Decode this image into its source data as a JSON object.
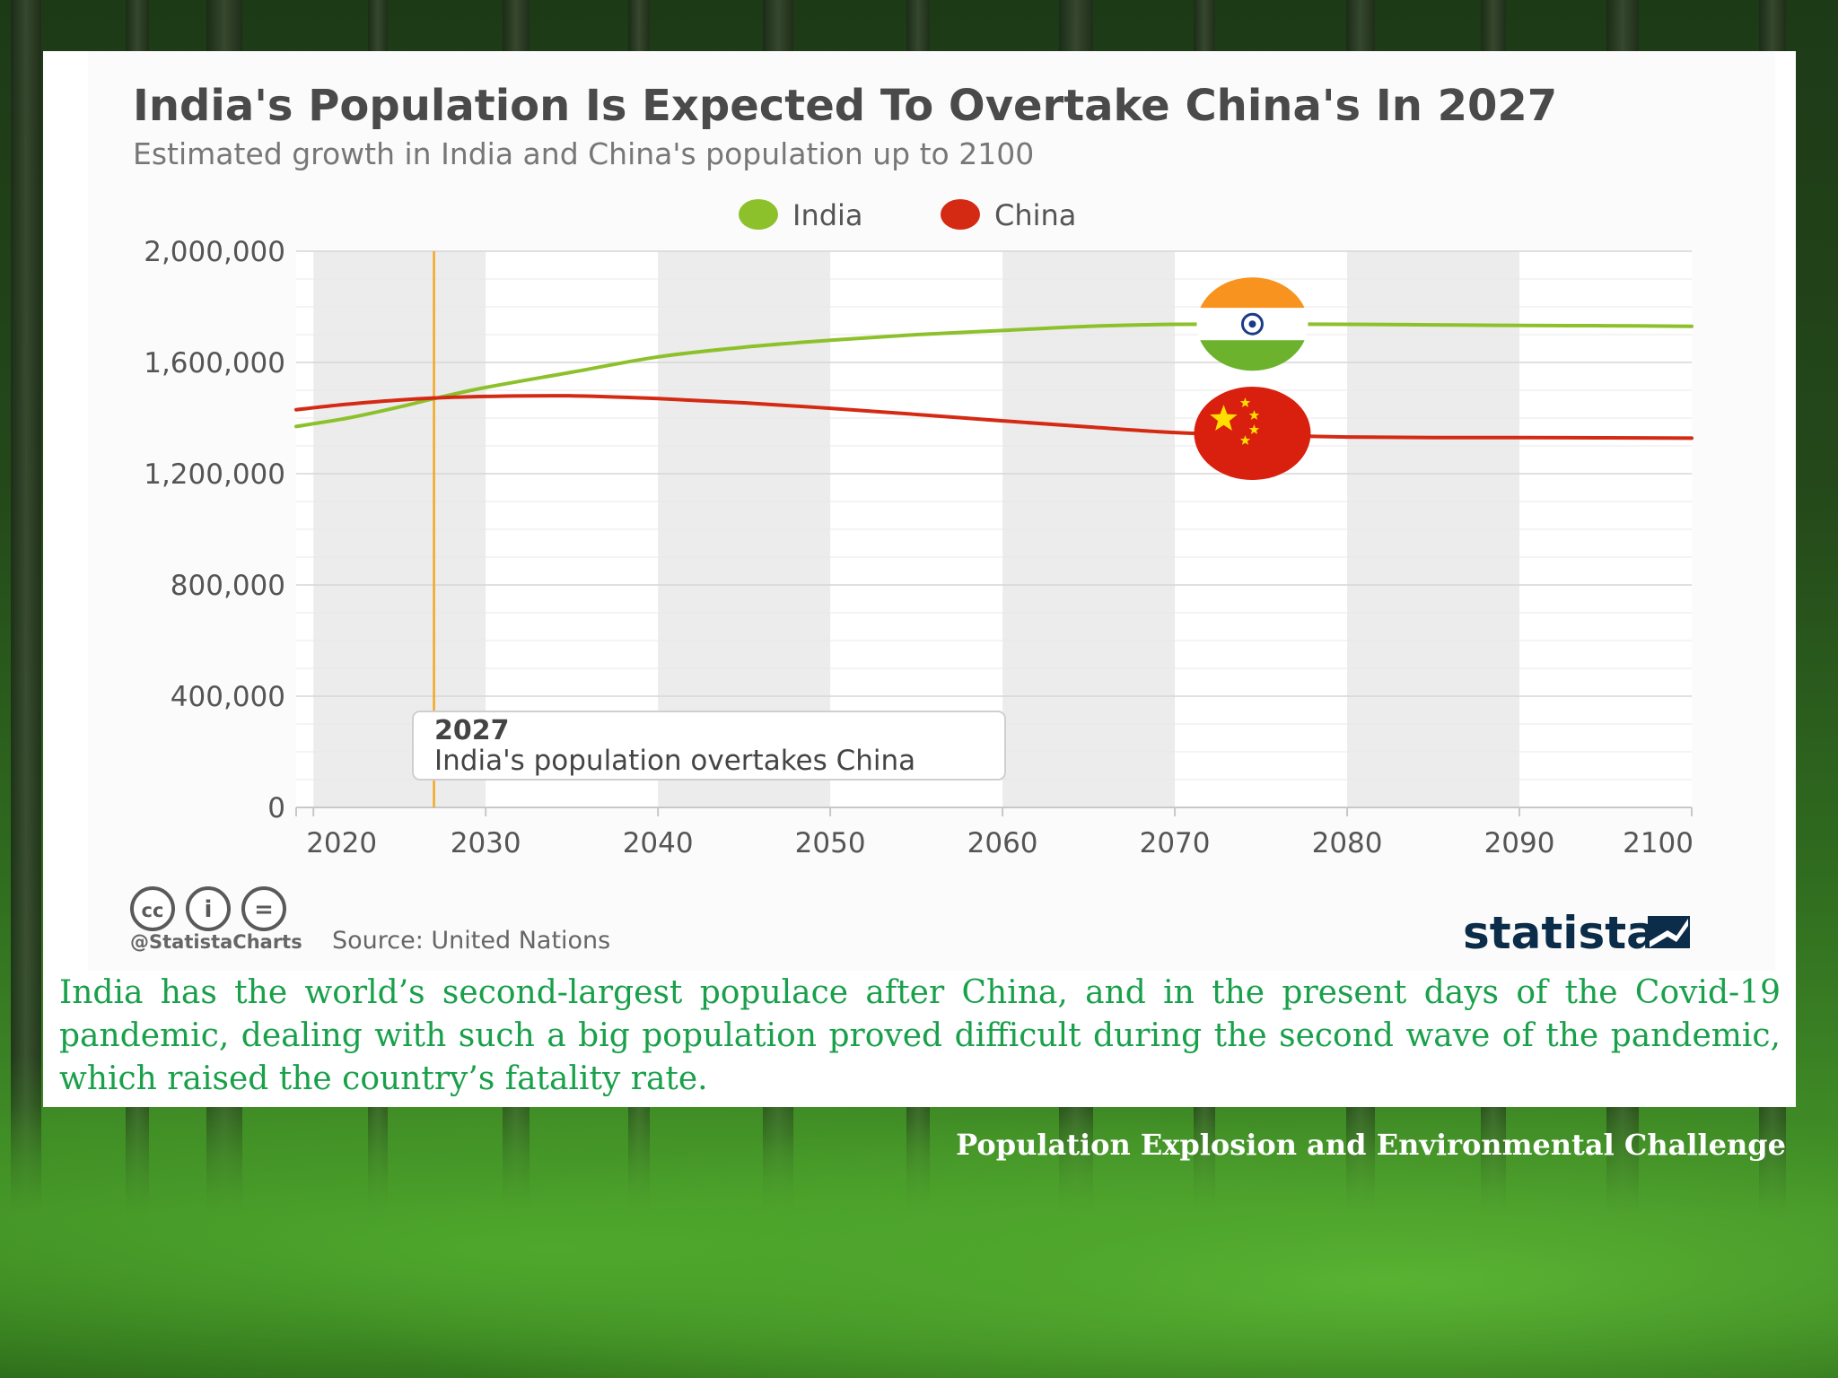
{
  "chart_data": {
    "type": "line",
    "title": "India's Population Is Expected To Overtake China's In 2027",
    "subtitle": "Estimated growth in India and China's population up to 2100",
    "xlabel": "",
    "ylabel": "",
    "xlim": [
      2019,
      2100
    ],
    "ylim": [
      0,
      2000000
    ],
    "yticks": [
      0,
      400000,
      800000,
      1200000,
      1600000,
      2000000
    ],
    "ytick_labels": [
      "0",
      "400,000",
      "800,000",
      "1,200,000",
      "1,600,000",
      "2,000,000"
    ],
    "xticks": [
      2020,
      2030,
      2040,
      2050,
      2060,
      2070,
      2080,
      2090,
      2100
    ],
    "xtick_labels": [
      "2020",
      "2030",
      "2040",
      "2050",
      "2060",
      "2070",
      "2080",
      "2090",
      "2100"
    ],
    "legend_position": "top-center",
    "grid": true,
    "series": [
      {
        "name": "India",
        "color": "#8dc12b",
        "x": [
          2019,
          2022,
          2025,
          2027,
          2030,
          2035,
          2040,
          2045,
          2050,
          2055,
          2060,
          2065,
          2070,
          2075,
          2080,
          2085,
          2090,
          2095,
          2100
        ],
        "values": [
          1370000,
          1400000,
          1440000,
          1470000,
          1510000,
          1565000,
          1620000,
          1655000,
          1680000,
          1700000,
          1715000,
          1730000,
          1737000,
          1738000,
          1737000,
          1735000,
          1733000,
          1732000,
          1730000
        ]
      },
      {
        "name": "China",
        "color": "#d42a14",
        "x": [
          2019,
          2022,
          2025,
          2027,
          2030,
          2035,
          2040,
          2045,
          2050,
          2055,
          2060,
          2065,
          2070,
          2075,
          2080,
          2085,
          2090,
          2095,
          2100
        ],
        "values": [
          1430000,
          1450000,
          1465000,
          1472000,
          1478000,
          1480000,
          1470000,
          1455000,
          1435000,
          1413000,
          1390000,
          1368000,
          1348000,
          1338000,
          1332000,
          1330000,
          1330000,
          1329000,
          1328000
        ]
      }
    ],
    "annotation": {
      "x": 2027,
      "year": "2027",
      "text": "India's population overtakes China"
    },
    "flag_markers": [
      {
        "country": "India",
        "icon": "india-flag-icon",
        "x": 2074.5,
        "y": 1738000
      },
      {
        "country": "China",
        "icon": "china-flag-icon",
        "x": 2074.5,
        "y": 1345000
      }
    ]
  },
  "chart_footer": {
    "handle": "@StatistaCharts",
    "source": "Source: United Nations",
    "brand": "statista",
    "license_icons": [
      "cc-icon",
      "by-icon",
      "nd-icon"
    ]
  },
  "caption": "India has the world’s second-largest populace after China, and in the present days of the Covid-19 pandemic, dealing with such a big population proved difficult during the second wave of the pandemic, which raised the country’s fatality rate.",
  "footer_title": "Population Explosion and Environmental Challenge",
  "colors": {
    "india": "#8dc12b",
    "china": "#d42a14",
    "marker_line": "#f5a623",
    "caption": "#19a04a",
    "brand": "#0c2d4a"
  }
}
